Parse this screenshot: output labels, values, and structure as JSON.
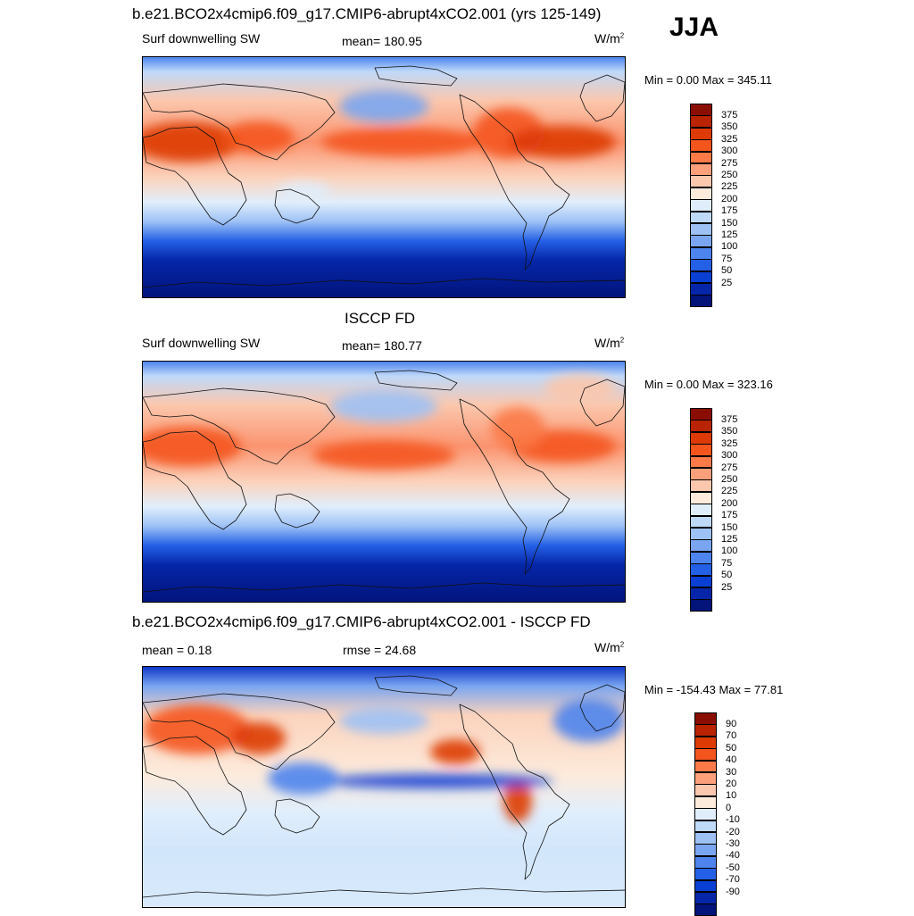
{
  "season": "JJA",
  "panels": [
    {
      "title": "b.e21.BCO2x4cmip6.f09_g17.CMIP6-abrupt4xCO2.001 (yrs 125-149)",
      "left_label": "Surf downwelling SW",
      "center_label": "mean= 180.95",
      "units": "W/m",
      "units_sup": "2",
      "minmax": "Min =   0.00 Max = 345.11",
      "colorbar": {
        "colors": [
          "#8a0e00",
          "#b92300",
          "#dd3a05",
          "#f4551c",
          "#fb7a48",
          "#fca07c",
          "#fbc7ad",
          "#fdebdc",
          "#e0eefc",
          "#bfd9f9",
          "#9dc1f5",
          "#7aa6f1",
          "#4d84ed",
          "#2460e6",
          "#0a3fd4",
          "#0526a8",
          "#02137a"
        ],
        "ticks": [
          "375",
          "350",
          "325",
          "300",
          "275",
          "250",
          "225",
          "200",
          "175",
          "150",
          "125",
          "100",
          "75",
          "50",
          "25"
        ]
      }
    },
    {
      "title": "ISCCP FD",
      "left_label": "Surf downwelling SW",
      "center_label": "mean= 180.77",
      "units": "W/m",
      "units_sup": "2",
      "minmax": "Min =   0.00 Max = 323.16",
      "colorbar": {
        "colors": [
          "#8a0e00",
          "#b92300",
          "#dd3a05",
          "#f4551c",
          "#fb7a48",
          "#fca07c",
          "#fbc7ad",
          "#fdebdc",
          "#e0eefc",
          "#bfd9f9",
          "#9dc1f5",
          "#7aa6f1",
          "#4d84ed",
          "#2460e6",
          "#0a3fd4",
          "#0526a8",
          "#02137a"
        ],
        "ticks": [
          "375",
          "350",
          "325",
          "300",
          "275",
          "250",
          "225",
          "200",
          "175",
          "150",
          "125",
          "100",
          "75",
          "50",
          "25"
        ]
      }
    },
    {
      "title": "b.e21.BCO2x4cmip6.f09_g17.CMIP6-abrupt4xCO2.001 - ISCCP FD",
      "left_label": "mean =   0.18",
      "center_label": "rmse =  24.68",
      "units": "W/m",
      "units_sup": "2",
      "minmax": "Min = -154.43 Max =  77.81",
      "colorbar": {
        "colors": [
          "#8a0e00",
          "#b92300",
          "#dd3a05",
          "#f4551c",
          "#fb7a48",
          "#fca07c",
          "#fbc7ad",
          "#fdebdc",
          "#e0eefc",
          "#bfd9f9",
          "#9dc1f5",
          "#7aa6f1",
          "#4d84ed",
          "#2460e6",
          "#0a3fd4",
          "#0526a8",
          "#02137a"
        ],
        "ticks": [
          "90",
          "70",
          "50",
          "40",
          "30",
          "20",
          "10",
          "0",
          "-10",
          "-20",
          "-30",
          "-40",
          "-50",
          "-70",
          "-90"
        ]
      }
    }
  ]
}
